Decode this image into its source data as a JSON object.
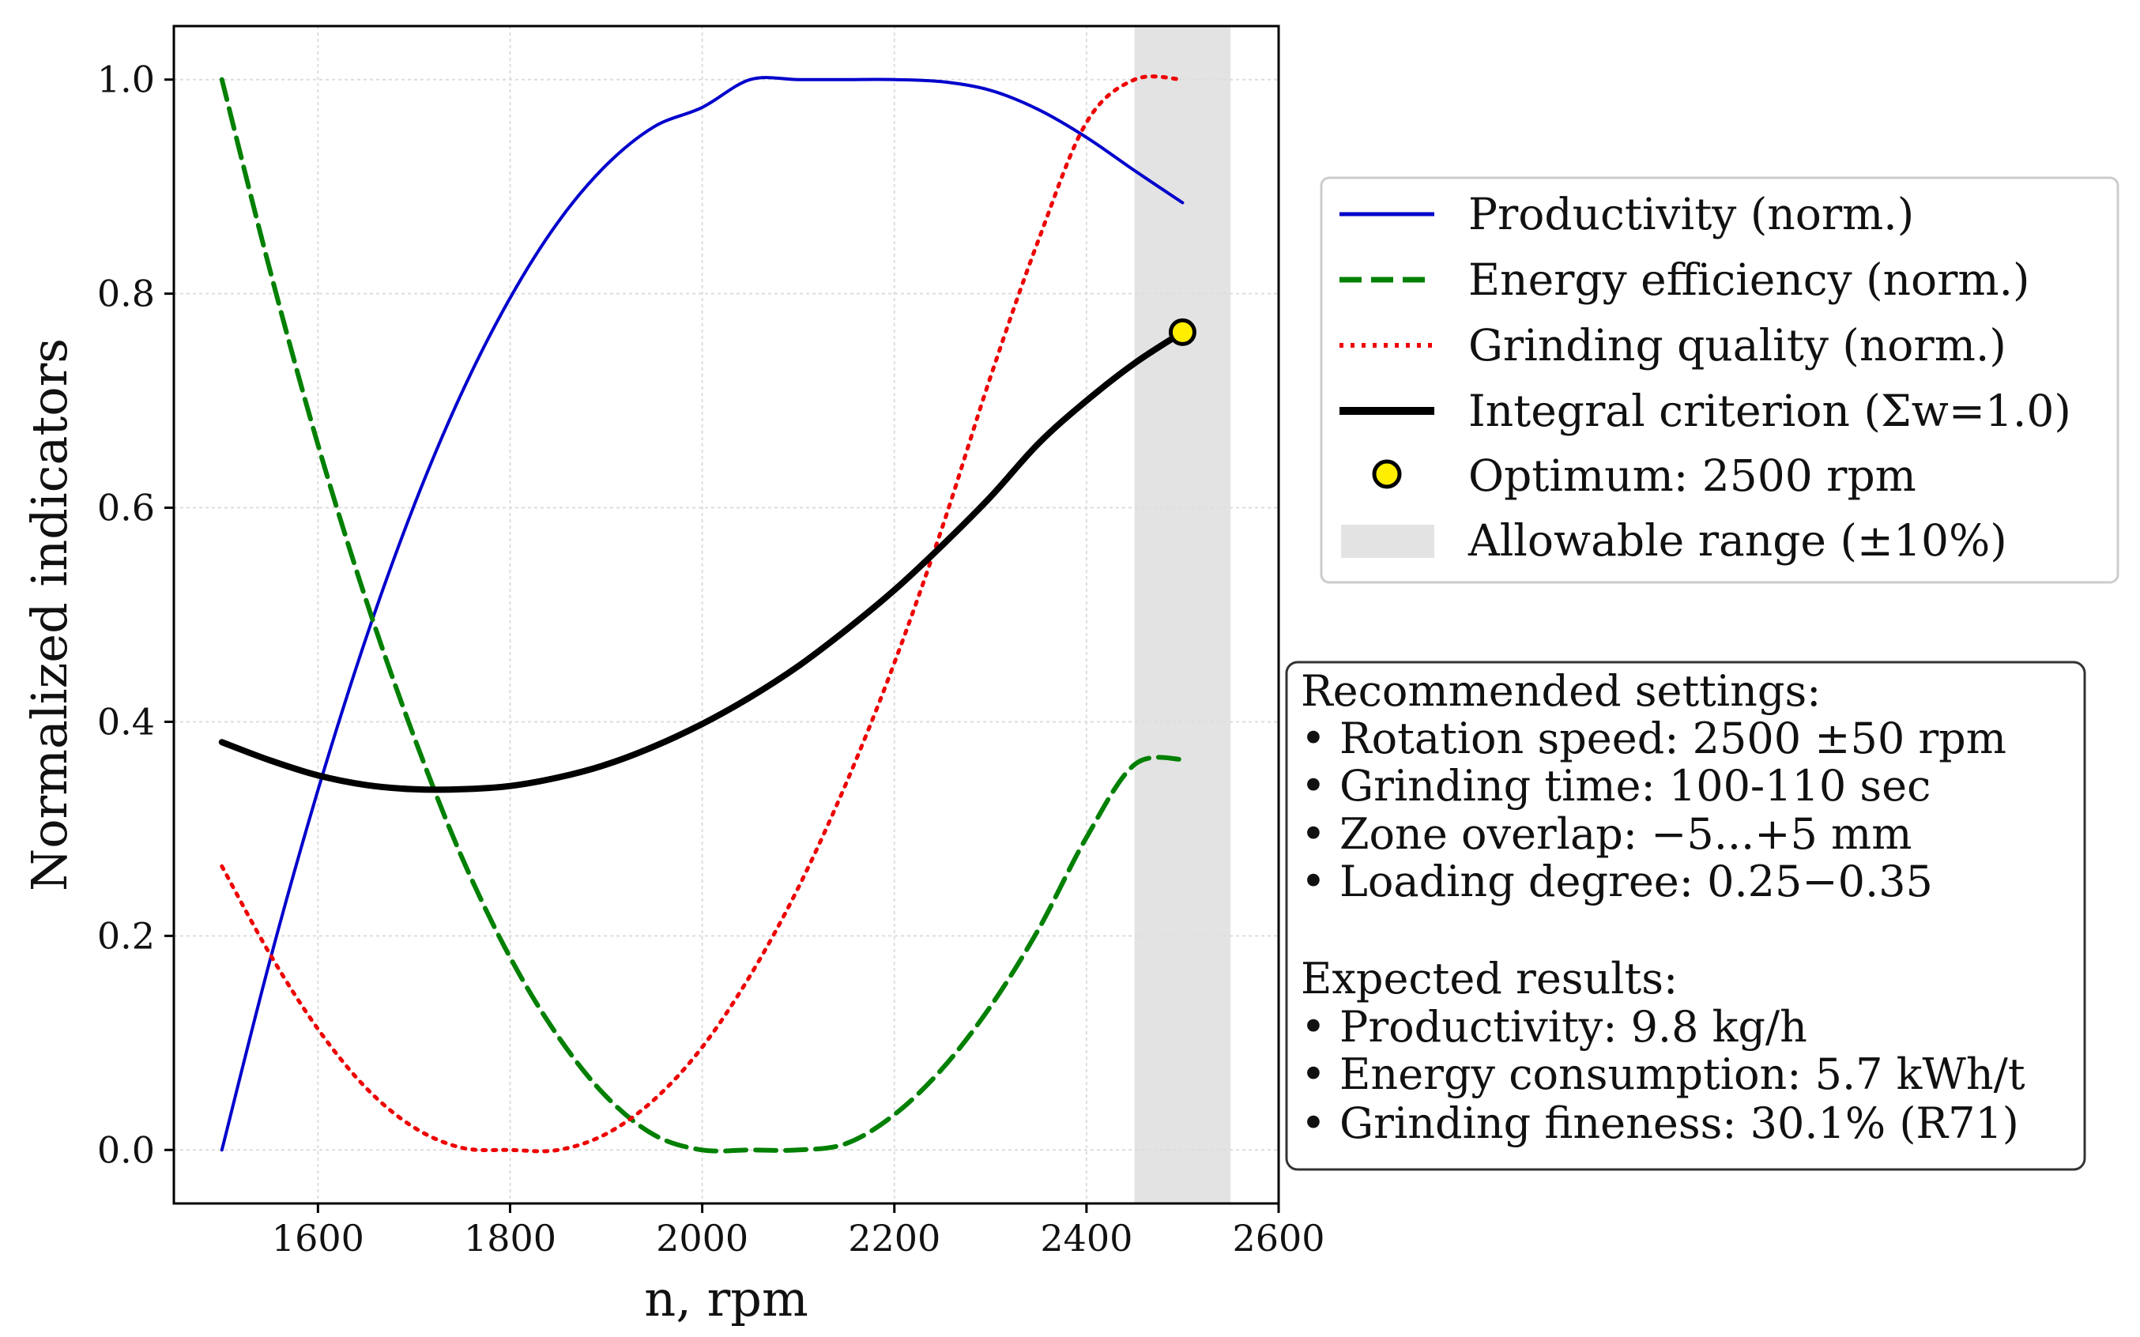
{
  "chart_data": {
    "type": "line",
    "xlabel": "n, rpm",
    "ylabel": "Normalized indicators",
    "xlim": [
      1450,
      2600
    ],
    "ylim": [
      -0.05,
      1.05
    ],
    "x_ticks": [
      1600,
      1800,
      2000,
      2200,
      2400,
      2600
    ],
    "y_ticks": [
      0.0,
      0.2,
      0.4,
      0.6,
      0.8,
      1.0
    ],
    "x_tick_labels": [
      "1600",
      "1800",
      "2000",
      "2200",
      "2400",
      "2600"
    ],
    "y_tick_labels": [
      "0.0",
      "0.2",
      "0.4",
      "0.6",
      "0.8",
      "1.0"
    ],
    "grid": true,
    "x": [
      1500,
      1550,
      1600,
      1650,
      1700,
      1750,
      1800,
      1850,
      1900,
      1950,
      2000,
      2050,
      2100,
      2150,
      2200,
      2250,
      2300,
      2350,
      2400,
      2450,
      2500
    ],
    "series": [
      {
        "name": "Productivity (norm.)",
        "color": "#0000cc",
        "style": "solid",
        "values": [
          0.0,
          0.177,
          0.336,
          0.478,
          0.602,
          0.708,
          0.796,
          0.867,
          0.92,
          0.956,
          0.974,
          1.0,
          1.0,
          1.0,
          1.0,
          0.998,
          0.99,
          0.972,
          0.946,
          0.915,
          0.885
        ]
      },
      {
        "name": "Energy efficiency (norm.)",
        "color": "#008000",
        "style": "dashed",
        "values": [
          1.0,
          0.822,
          0.659,
          0.514,
          0.386,
          0.273,
          0.18,
          0.106,
          0.05,
          0.014,
          0.0,
          0.0,
          0.0,
          0.006,
          0.033,
          0.076,
          0.134,
          0.206,
          0.292,
          0.36,
          0.365
        ]
      },
      {
        "name": "Grinding quality (norm.)",
        "color": "#ee0000",
        "style": "dotted",
        "values": [
          0.265,
          0.183,
          0.113,
          0.058,
          0.021,
          0.002,
          0.0,
          0.0,
          0.015,
          0.047,
          0.096,
          0.163,
          0.245,
          0.343,
          0.455,
          0.582,
          0.722,
          0.85,
          0.96,
          1.0,
          1.0
        ]
      },
      {
        "name": "Integral criterion (Σw=1.0)",
        "color": "#000000",
        "style": "solid-thick",
        "values": [
          0.381,
          0.364,
          0.35,
          0.341,
          0.337,
          0.337,
          0.34,
          0.348,
          0.36,
          0.377,
          0.398,
          0.423,
          0.452,
          0.486,
          0.523,
          0.565,
          0.61,
          0.66,
          0.7,
          0.735,
          0.764
        ]
      }
    ],
    "optimum": {
      "label": "Optimum: 2500 rpm",
      "x": 2500,
      "y": 0.764,
      "color": "#ffee00"
    },
    "allowable_range": {
      "label": "Allowable range (±10%)",
      "x0": 2450,
      "x1": 2550
    },
    "legend_position": "right-upper",
    "info_box": {
      "heading1": "Recommended settings:",
      "settings": [
        "• Rotation speed: 2500 ±50 rpm",
        "• Grinding time: 100-110 sec",
        "• Zone overlap: −5...+5 mm",
        "• Loading degree: 0.25−0.35"
      ],
      "heading2": "Expected results:",
      "results": [
        "• Productivity: 9.8 kg/h",
        "• Energy consumption: 5.7 kWh/t",
        "• Grinding fineness: 30.1% (R71)"
      ]
    }
  }
}
